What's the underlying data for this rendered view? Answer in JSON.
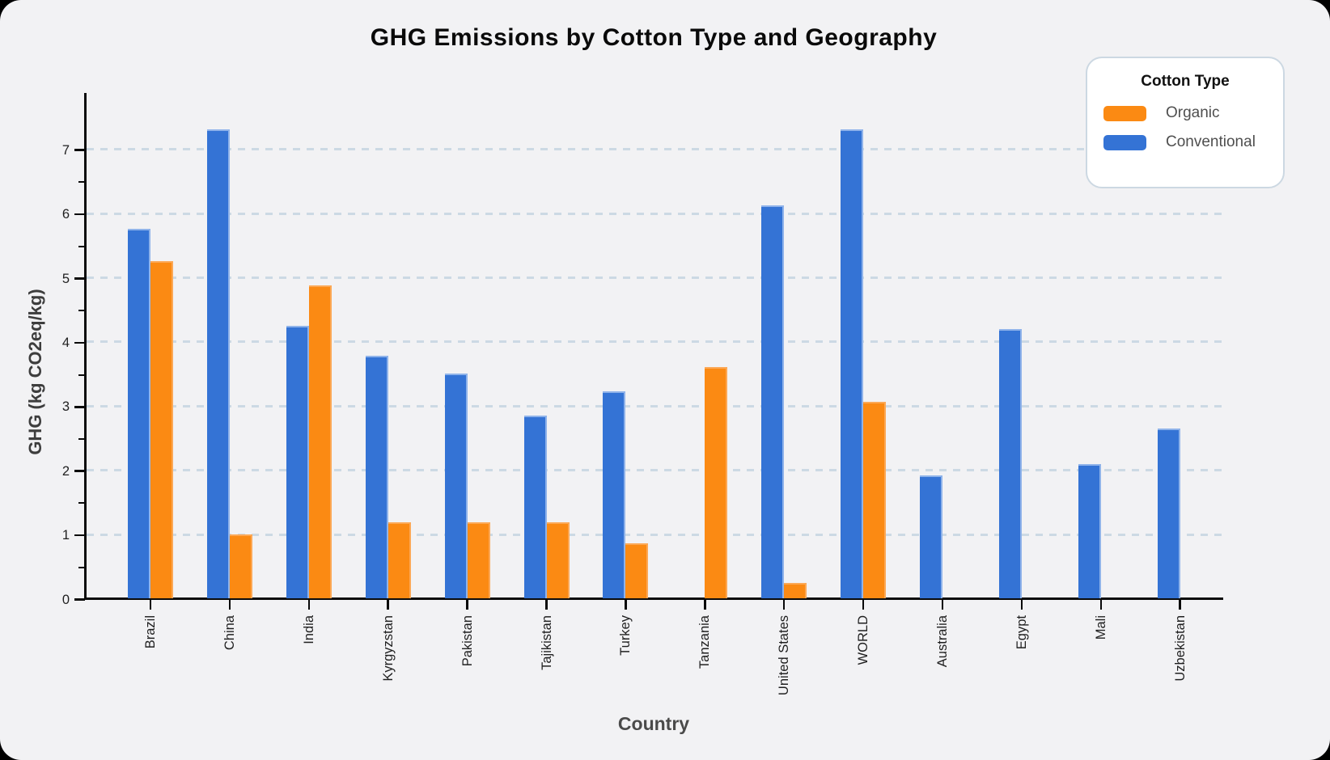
{
  "page": {
    "background": "#000000",
    "card_background": "#f2f2f4"
  },
  "chart_data": {
    "type": "bar",
    "title": "GHG Emissions by Cotton Type and Geography",
    "xlabel": "Country",
    "ylabel": "GHG (kg CO2eq/kg)",
    "ylim": [
      0,
      7.8
    ],
    "yticks": [
      0,
      1,
      2,
      3,
      4,
      5,
      6,
      7
    ],
    "grid": "horizontal dashed lines at integer ticks",
    "legend_position": "top-right",
    "categories": [
      "Brazil",
      "China",
      "India",
      "Kyrgyzstan",
      "Pakistan",
      "Tajikistan",
      "Turkey",
      "Tanzania",
      "United States",
      "WORLD",
      "Australia",
      "Egypt",
      "Mali",
      "Uzbekistan"
    ],
    "series": [
      {
        "name": "Organic",
        "color": "#fb8a13",
        "values": [
          5.25,
          1.0,
          4.88,
          1.19,
          1.19,
          1.19,
          0.86,
          3.6,
          0.24,
          3.06,
          null,
          null,
          null,
          null
        ]
      },
      {
        "name": "Conventional",
        "color": "#3473d5",
        "values": [
          5.75,
          7.3,
          4.25,
          3.78,
          3.5,
          2.85,
          3.23,
          null,
          6.12,
          7.3,
          1.92,
          4.19,
          2.09,
          2.64
        ]
      }
    ]
  },
  "legend": {
    "title": "Cotton Type",
    "items": [
      {
        "label": "Organic",
        "color": "#fb8a13"
      },
      {
        "label": "Conventional",
        "color": "#3473d5"
      }
    ]
  },
  "colors": {
    "accent_orange": "#fb8a13",
    "accent_blue": "#3473d5",
    "gridline": "#ccd9e4",
    "axis": "#0a0a0a"
  }
}
